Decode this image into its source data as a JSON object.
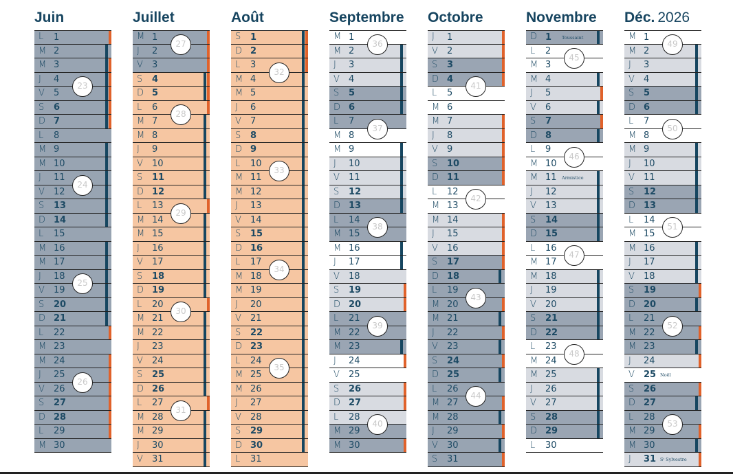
{
  "colors": {
    "navy": "#164660",
    "orange": "#e0622b",
    "grey_blue": "#98a4b2",
    "peach": "#f6c6a2",
    "light_grey": "#d8dbe1",
    "weekend_grey": "#9aa5b3"
  },
  "months": [
    {
      "name": "Juin",
      "year": "",
      "wd": "LMMJVSDLMMJVSDLMMJVSDLMMJVSDLM",
      "bg": "gggggggggggggggggggggggggggggg",
      "bars": "onbbbbb-nnnnnn-nnnnnno-oooooo-",
      "weeks": [
        {
          "n": "23",
          "after": 4
        },
        {
          "n": "24",
          "after": 11
        },
        {
          "n": "25",
          "after": 18
        },
        {
          "n": "26",
          "after": 25
        }
      ],
      "notes": {}
    },
    {
      "name": "Juillet",
      "year": "",
      "wd": "MJVSDLMMJVSDLMMJVSDLMMJVSDLMMJV",
      "bg": "gggpppppppppppppppppppppppppppp",
      "bars": "ooobbonnnnnnonnnnnnonnnnnnonnnn",
      "weeks": [
        {
          "n": "27",
          "after": 1
        },
        {
          "n": "28",
          "after": 6
        },
        {
          "n": "29",
          "after": 13
        },
        {
          "n": "30",
          "after": 20
        },
        {
          "n": "31",
          "after": 27
        }
      ],
      "notes": {}
    },
    {
      "name": "Août",
      "year": "",
      "wd": "SDLMMJVSDLMMJVSDLMMJVSDLMMJVSDL",
      "bg": "pppppppppppppppppppppppppppppppw",
      "bars": "bbbnnnnnnnnnnnnnnnnnnnnnnnnnnn-",
      "weeks": [
        {
          "n": "32",
          "after": 3
        },
        {
          "n": "33",
          "after": 10
        },
        {
          "n": "34",
          "after": 17
        },
        {
          "n": "35",
          "after": 24
        }
      ],
      "notes": {}
    },
    {
      "name": "Septembre",
      "year": "",
      "wd": "MMJVSDLMMJVSDLMMJVSDLMMJVSDLMM",
      "bg": "wllldddwwllldddwwllldddwwllldddwwl",
      "bars": "-nnnnn--nnnnn--nn-oo--no-oo--o",
      "weeks": [
        {
          "n": "36",
          "after": 1
        },
        {
          "n": "37",
          "after": 7
        },
        {
          "n": "38",
          "after": 14
        },
        {
          "n": "39",
          "after": 21
        },
        {
          "n": "40",
          "after": 28
        }
      ],
      "notes": {}
    },
    {
      "name": "Octobre",
      "year": "",
      "wd": "JVSDLMMJVSDLMMJVSDLMMJVSDLMMJVS",
      "bg": "llddwwllldd wwllldd ggggggggggggg",
      "bars": "oooo--ooooo--oooon-ononon-onono",
      "weeks": [
        {
          "n": "41",
          "after": 4
        },
        {
          "n": "42",
          "after": 12
        },
        {
          "n": "43",
          "after": 19
        },
        {
          "n": "44",
          "after": 26
        }
      ],
      "notes": {}
    },
    {
      "name": "Novembre",
      "year": "",
      "wd": "DLMMJVSDLMMJVSDLMMJVSDLMMJVSDL",
      "bg": "dwwllldd wwllldd wwllldd wwllldd w",
      "bars": "n--nonon--nnnnn--nnnnn--nnnnn-",
      "weeks": [
        {
          "n": "45",
          "after": 2
        },
        {
          "n": "46",
          "after": 9
        },
        {
          "n": "47",
          "after": 16
        },
        {
          "n": "48",
          "after": 23
        }
      ],
      "notes": {
        "1": "Toussaint",
        "11": "Armistice"
      }
    },
    {
      "name": "Déc.",
      "year": "2026",
      "wd": "MMJVSDLMMJVSDLMMJVSDLMMJVSDLMMJ",
      "bg": "wllldd wwllldd wwlllddggglwddgggl",
      "bars": "-nnnnn--nnnnn--nnnon-ono-on-ono",
      "weeks": [
        {
          "n": "49",
          "after": 1
        },
        {
          "n": "50",
          "after": 7
        },
        {
          "n": "51",
          "after": 14
        },
        {
          "n": "52",
          "after": 21
        },
        {
          "n": "53",
          "after": 28
        }
      ],
      "notes": {
        "25": "Noël",
        "31": "Sᵗ Sylvestre"
      }
    }
  ],
  "bold_holidays": {
    "Novembre": [
      1
    ],
    "Déc.": [
      25,
      31
    ]
  }
}
